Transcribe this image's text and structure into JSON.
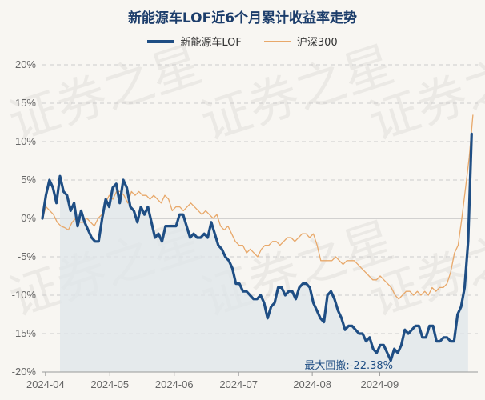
{
  "chart_data": {
    "type": "line",
    "title": "新能源车LOF近6个月累计收益率走势",
    "watermark": "证券之星",
    "colors": {
      "fund": "#1f4e84",
      "index": "#e8a86a",
      "area": "#dfe5ea",
      "grid": "#cccccc",
      "axis_text": "#666666"
    },
    "ylim": [
      -20,
      20
    ],
    "y_ticks": [
      -20,
      -15,
      -10,
      -5,
      0,
      5,
      10,
      15,
      20
    ],
    "y_tick_labels": [
      "-20%",
      "-15%",
      "-10%",
      "-5%",
      "0%",
      "5%",
      "10%",
      "15%",
      "20%"
    ],
    "x_range": [
      0,
      142
    ],
    "x_ticks": [
      {
        "x": 1,
        "label": "2024-04"
      },
      {
        "x": 22,
        "label": "2024-05"
      },
      {
        "x": 43,
        "label": "2024-06"
      },
      {
        "x": 64,
        "label": "2024-07"
      },
      {
        "x": 88,
        "label": "2024-08"
      },
      {
        "x": 110,
        "label": "2024-09"
      }
    ],
    "max_drawdown": {
      "label": "最大回撤:",
      "value": "-22.38%",
      "start_x": 5,
      "end_x": 139
    },
    "series": [
      {
        "name": "新能源车LOF",
        "values": [
          0.0,
          3.0,
          5.0,
          4.0,
          2.0,
          5.5,
          3.5,
          3.0,
          1.0,
          2.0,
          -1.0,
          1.0,
          -0.5,
          -1.5,
          -2.5,
          -3.0,
          -3.0,
          0.0,
          2.5,
          1.5,
          4.0,
          4.5,
          2.0,
          5.0,
          4.0,
          1.5,
          1.0,
          -0.5,
          1.5,
          0.5,
          1.5,
          -0.5,
          -2.5,
          -2.0,
          -3.0,
          -1.0,
          -1.0,
          -1.0,
          -1.0,
          0.5,
          0.5,
          -1.0,
          -2.5,
          -2.0,
          -2.5,
          -2.5,
          -2.0,
          -2.5,
          -0.5,
          -2.0,
          -3.5,
          -4.0,
          -5.0,
          -5.5,
          -6.5,
          -8.5,
          -8.5,
          -9.5,
          -9.5,
          -10.0,
          -10.5,
          -10.5,
          -10.0,
          -11.0,
          -13.0,
          -11.5,
          -11.0,
          -9.0,
          -9.0,
          -10.0,
          -9.5,
          -9.5,
          -10.5,
          -9.0,
          -8.5,
          -8.5,
          -9.0,
          -11.0,
          -12.0,
          -13.0,
          -13.5,
          -10.0,
          -9.5,
          -10.5,
          -12.0,
          -13.0,
          -14.5,
          -14.0,
          -14.0,
          -14.5,
          -15.0,
          -15.0,
          -16.0,
          -15.5,
          -17.0,
          -17.5,
          -16.5,
          -16.5,
          -17.5,
          -18.5,
          -17.0,
          -17.5,
          -16.5,
          -14.5,
          -15.0,
          -14.5,
          -14.0,
          -14.0,
          -15.5,
          -15.5,
          -14.0,
          -14.0,
          -16.0,
          -16.0,
          -15.5,
          -15.5,
          -16.0,
          -16.0,
          -12.5,
          -11.5,
          -9.0,
          -3.0,
          11.0
        ],
        "x_start": 0,
        "x_step": 1.1475
      },
      {
        "name": "沪深300",
        "values": [
          0.0,
          1.5,
          1.0,
          0.5,
          -0.5,
          -1.0,
          -1.2,
          -1.5,
          -0.5,
          0.0,
          -0.5,
          -0.5,
          0.0,
          -0.5,
          -1.0,
          0.0,
          0.5,
          2.0,
          3.0,
          2.5,
          3.5,
          3.5,
          3.0,
          2.0,
          3.5,
          3.0,
          3.5,
          3.0,
          3.0,
          2.5,
          3.0,
          2.5,
          2.0,
          3.0,
          2.5,
          1.0,
          1.5,
          1.5,
          1.0,
          1.5,
          2.0,
          1.5,
          1.0,
          0.5,
          1.0,
          0.5,
          0.0,
          0.5,
          -1.0,
          -1.5,
          -1.0,
          -2.0,
          -3.0,
          -3.5,
          -3.5,
          -4.5,
          -4.0,
          -4.5,
          -5.0,
          -4.0,
          -3.5,
          -3.5,
          -3.0,
          -3.0,
          -3.5,
          -3.0,
          -2.5,
          -2.5,
          -3.0,
          -2.5,
          -2.0,
          -2.0,
          -2.5,
          -2.0,
          -3.5,
          -5.5,
          -5.5,
          -5.5,
          -5.5,
          -5.0,
          -5.5,
          -6.0,
          -5.5,
          -5.5,
          -5.5,
          -6.0,
          -6.5,
          -7.0,
          -7.5,
          -8.0,
          -8.0,
          -7.5,
          -8.0,
          -8.5,
          -9.0,
          -10.0,
          -10.5,
          -10.0,
          -9.5,
          -9.5,
          -10.0,
          -9.5,
          -10.0,
          -9.5,
          -10.0,
          -9.0,
          -9.5,
          -9.0,
          -9.0,
          -8.5,
          -7.0,
          -4.5,
          -3.5,
          0.0,
          4.0,
          8.0,
          13.5
        ],
        "x_start": 0,
        "x_step": 1.2105
      }
    ]
  }
}
